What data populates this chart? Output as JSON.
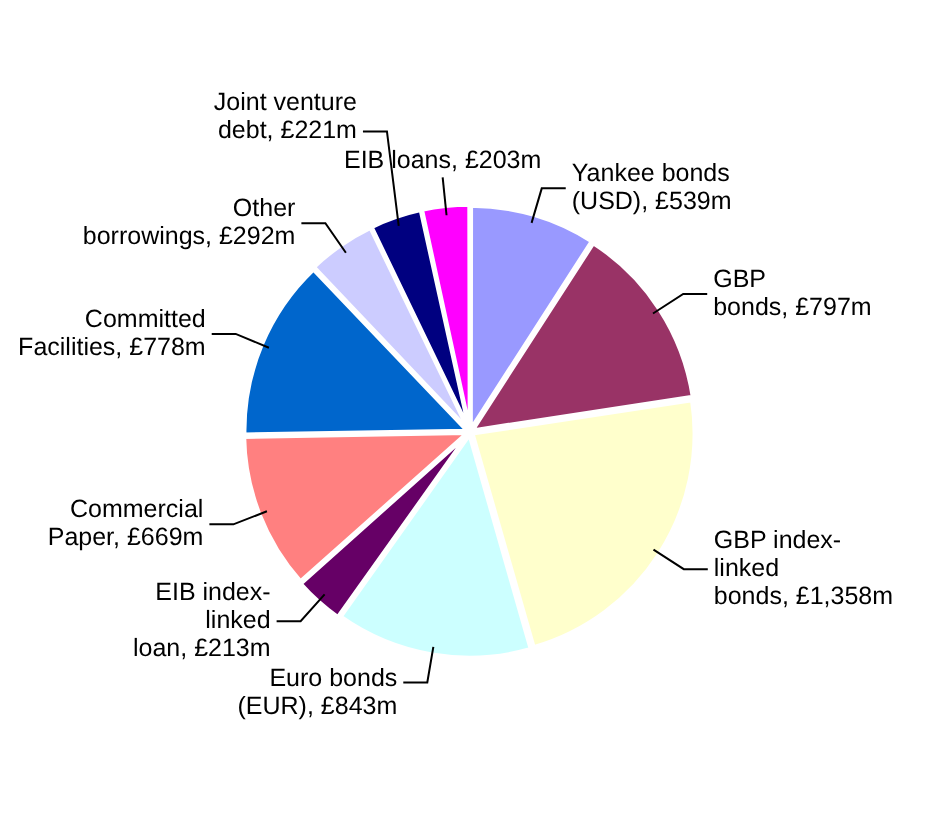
{
  "chart_data": {
    "type": "pie",
    "categories": [
      "Yankee bonds (USD)",
      "GBP bonds",
      "GBP index-linked bonds",
      "Euro bonds (EUR)",
      "EIB index-linked loan",
      "Commercial Paper",
      "Committed Facilities",
      "Other borrowings",
      "Joint venture debt",
      "EIB loans"
    ],
    "values": [
      539,
      797,
      1358,
      843,
      213,
      669,
      778,
      292,
      221,
      203
    ],
    "value_labels": [
      "£539m",
      "£797m",
      "£1,358m",
      "£843m",
      "£213m",
      "£669m",
      "£778m",
      "£292m",
      "£221m",
      "£203m"
    ],
    "colors": [
      "#9999ff",
      "#993366",
      "#ffffcc",
      "#ccffff",
      "#660066",
      "#ff8080",
      "#0066cc",
      "#ccccff",
      "#000080",
      "#ff00ff"
    ],
    "legend": false
  }
}
